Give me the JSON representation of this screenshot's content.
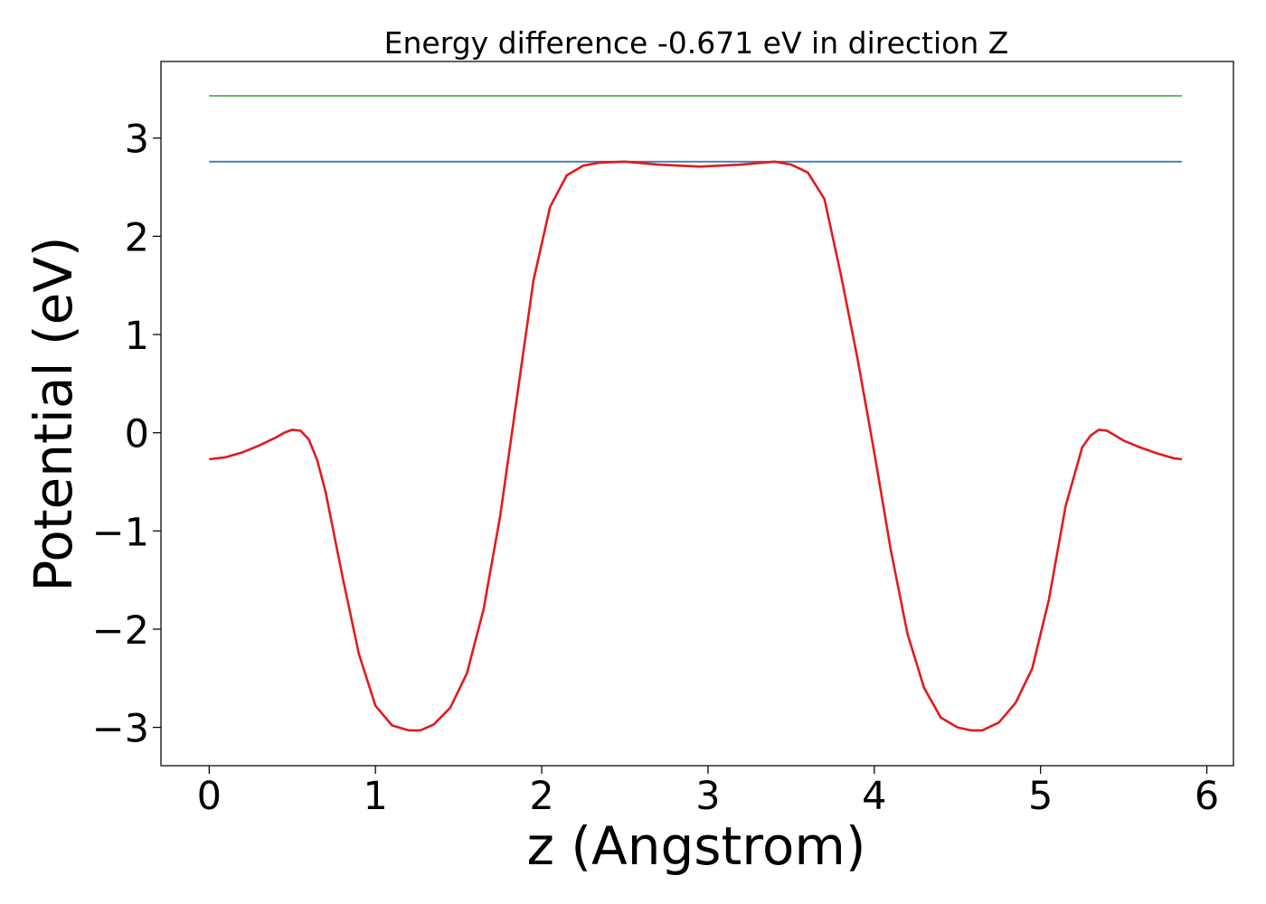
{
  "chart_data": {
    "type": "line",
    "title": "Energy difference -0.671 eV in direction Z",
    "xlabel": "z (Angstrom)",
    "ylabel": "Potential (eV)",
    "xlim": [
      -0.29,
      6.16
    ],
    "ylim": [
      -3.39,
      3.78
    ],
    "xticks": [
      0,
      1,
      2,
      3,
      4,
      5,
      6
    ],
    "yticks": [
      -3,
      -2,
      -1,
      0,
      1,
      2,
      3
    ],
    "xtick_labels": [
      "0",
      "1",
      "2",
      "3",
      "4",
      "5",
      "6"
    ],
    "ytick_labels": [
      "−3",
      "−2",
      "−1",
      "0",
      "1",
      "2",
      "3"
    ],
    "grid": false,
    "legend": "none",
    "series": [
      {
        "color": "#e31a1c",
        "x": [
          0,
          0.1,
          0.2,
          0.3,
          0.4,
          0.45,
          0.5,
          0.55,
          0.6,
          0.65,
          0.7,
          0.8,
          0.9,
          1.0,
          1.1,
          1.2,
          1.27,
          1.35,
          1.45,
          1.55,
          1.65,
          1.75,
          1.85,
          1.95,
          2.05,
          2.15,
          2.25,
          2.35,
          2.5,
          2.7,
          2.95,
          3.2,
          3.4,
          3.5,
          3.6,
          3.7,
          3.8,
          3.9,
          4.0,
          4.1,
          4.2,
          4.3,
          4.4,
          4.5,
          4.58,
          4.65,
          4.75,
          4.85,
          4.95,
          5.05,
          5.15,
          5.25,
          5.3,
          5.35,
          5.4,
          5.45,
          5.5,
          5.6,
          5.7,
          5.8,
          5.85
        ],
        "y": [
          -0.27,
          -0.25,
          -0.2,
          -0.13,
          -0.05,
          0.0,
          0.03,
          0.02,
          -0.07,
          -0.28,
          -0.6,
          -1.45,
          -2.25,
          -2.78,
          -2.98,
          -3.03,
          -3.03,
          -2.97,
          -2.8,
          -2.45,
          -1.8,
          -0.85,
          0.35,
          1.55,
          2.3,
          2.62,
          2.72,
          2.75,
          2.76,
          2.73,
          2.71,
          2.73,
          2.76,
          2.73,
          2.65,
          2.38,
          1.6,
          0.75,
          -0.2,
          -1.2,
          -2.05,
          -2.6,
          -2.9,
          -3.0,
          -3.03,
          -3.03,
          -2.95,
          -2.75,
          -2.4,
          -1.7,
          -0.75,
          -0.15,
          -0.03,
          0.03,
          0.02,
          -0.03,
          -0.08,
          -0.15,
          -0.21,
          -0.26,
          -0.27
        ]
      },
      {
        "color": "#377eb8",
        "x": [
          0,
          5.85
        ],
        "y": [
          2.76,
          2.76
        ]
      },
      {
        "color": "#4daf4a",
        "x": [
          0,
          5.85
        ],
        "y": [
          3.43,
          3.43
        ]
      }
    ]
  }
}
